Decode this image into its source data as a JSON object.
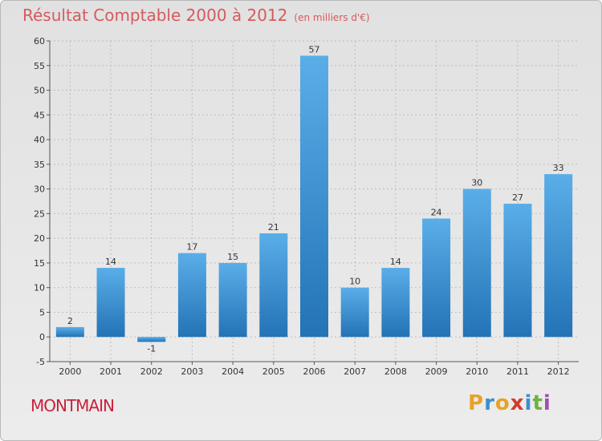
{
  "header": {
    "title": "Résultat Comptable 2000 à 2012",
    "subtitle": "(en milliers d'€)"
  },
  "commune": "MONTMAIN",
  "logo": {
    "letters": [
      "P",
      "r",
      "o",
      "x",
      "i",
      "t",
      "i"
    ],
    "colors": [
      "#e8a22a",
      "#3a8fd0",
      "#e8a22a",
      "#d13b2e",
      "#3a8fd0",
      "#6cb33f",
      "#9d4fb0"
    ]
  },
  "colors": {
    "bar_top": "#5aaee8",
    "bar_bottom": "#2373b6",
    "title": "#d65a5e",
    "commune": "#c8223b"
  },
  "chart_data": {
    "type": "bar",
    "title": "Résultat Comptable 2000 à 2012",
    "subtitle": "(en milliers d'€)",
    "xlabel": "",
    "ylabel": "",
    "categories": [
      "2000",
      "2001",
      "2002",
      "2003",
      "2004",
      "2005",
      "2006",
      "2007",
      "2008",
      "2009",
      "2010",
      "2011",
      "2012"
    ],
    "values": [
      2,
      14,
      -1,
      17,
      15,
      21,
      57,
      10,
      14,
      24,
      30,
      27,
      33
    ],
    "ylim": [
      -5,
      60
    ],
    "yticks": [
      -5,
      0,
      5,
      10,
      15,
      20,
      25,
      30,
      35,
      40,
      45,
      50,
      55,
      60
    ],
    "grid": true
  }
}
